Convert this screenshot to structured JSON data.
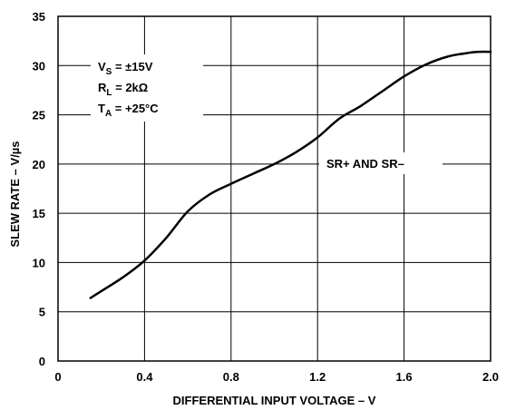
{
  "chart_data": {
    "type": "line",
    "xlabel": "DIFFERENTIAL INPUT VOLTAGE – V",
    "ylabel": "SLEW RATE – V/µs",
    "xlim": [
      0,
      2.0
    ],
    "ylim": [
      0,
      35
    ],
    "grid": true,
    "x_ticks": [
      0,
      0.4,
      0.8,
      1.2,
      1.6,
      2.0
    ],
    "x_tick_labels": [
      "0",
      "0.4",
      "0.8",
      "1.2",
      "1.6",
      "2.0"
    ],
    "y_ticks": [
      0,
      5,
      10,
      15,
      20,
      25,
      30,
      35
    ],
    "y_tick_labels": [
      "0",
      "5",
      "10",
      "15",
      "20",
      "25",
      "30",
      "35"
    ],
    "conditions": {
      "vs": {
        "main": "V",
        "sub": "S",
        "rest": " =  ±15V"
      },
      "rl": {
        "main": "R",
        "sub": "L",
        "rest": " = 2kΩ"
      },
      "ta": {
        "main": "T",
        "sub": "A",
        "rest": " = +25°C"
      }
    },
    "curve_label": "SR+ AND SR–",
    "series": [
      {
        "x": [
          0.15,
          0.2,
          0.3,
          0.4,
          0.5,
          0.6,
          0.7,
          0.8,
          0.9,
          1.0,
          1.1,
          1.2,
          1.3,
          1.4,
          1.5,
          1.6,
          1.7,
          1.8,
          1.9,
          1.95,
          2.0
        ],
        "y": [
          6.4,
          7.1,
          8.5,
          10.2,
          12.5,
          15.2,
          16.9,
          18.0,
          19.0,
          20.0,
          21.2,
          22.7,
          24.6,
          25.9,
          27.4,
          28.9,
          30.1,
          30.9,
          31.3,
          31.4,
          31.4
        ]
      }
    ]
  }
}
